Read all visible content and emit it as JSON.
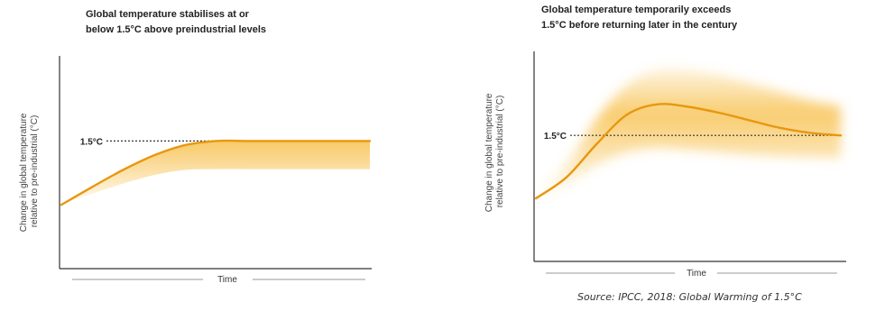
{
  "chart_data": [
    {
      "type": "area",
      "title": "Global temperature stabilises at or below 1.5°C above preindustrial levels",
      "title_lines": [
        "Global temperature stabilises at or",
        "below 1.5°C above preindustrial levels"
      ],
      "xlabel": "Time",
      "ylabel": "Change in global temperature relative to pre-industrial (°C)",
      "ylabel_lines": [
        "Change in global temperature",
        "relative to pre-industrial (°C)"
      ],
      "reference_label": "1.5°C",
      "reference_value": 1.5,
      "xlim": [
        0,
        1
      ],
      "ylim": [
        0,
        2.5
      ],
      "grid": false,
      "series": [
        {
          "x": [
            0,
            0.1,
            0.2,
            0.3,
            0.4,
            0.5,
            0.6,
            0.7,
            0.8,
            0.9,
            1.0
          ],
          "y": [
            0.75,
            0.96,
            1.16,
            1.33,
            1.45,
            1.5,
            1.5,
            1.5,
            1.5,
            1.5,
            1.5
          ],
          "band_low": [
            0.75,
            0.88,
            1.0,
            1.1,
            1.16,
            1.17,
            1.17,
            1.17,
            1.17,
            1.17,
            1.17
          ]
        }
      ],
      "colors": {
        "line": "#E8970F",
        "band": "#F6B733"
      }
    },
    {
      "type": "area",
      "title": "Global temperature temporarily exceeds 1.5°C before returning later in the century",
      "title_lines": [
        "Global temperature temporarily exceeds",
        "1.5°C before returning later in the century"
      ],
      "xlabel": "Time",
      "ylabel": "Change in global temperature relative to pre-industrial (°C)",
      "ylabel_lines": [
        "Change in global temperature",
        "relative to pre-industrial (°C)"
      ],
      "reference_label": "1.5°C",
      "reference_value": 1.5,
      "xlim": [
        0,
        1
      ],
      "ylim": [
        0,
        2.5
      ],
      "grid": false,
      "series": [
        {
          "x": [
            0,
            0.1,
            0.2,
            0.3,
            0.4,
            0.5,
            0.6,
            0.7,
            0.8,
            0.9,
            1.0
          ],
          "y": [
            0.75,
            1.0,
            1.4,
            1.75,
            1.87,
            1.84,
            1.77,
            1.68,
            1.59,
            1.53,
            1.5
          ],
          "band_low": [
            0.75,
            0.92,
            1.15,
            1.3,
            1.35,
            1.33,
            1.3,
            1.27,
            1.25,
            1.24,
            1.23
          ],
          "band_high": [
            0.75,
            1.15,
            1.7,
            2.1,
            2.28,
            2.28,
            2.22,
            2.12,
            2.02,
            1.92,
            1.85
          ]
        }
      ],
      "colors": {
        "line": "#E8970F",
        "band": "#F6B733"
      }
    }
  ],
  "source": "Source:  IPCC, 2018:  Global Warming of 1.5°C"
}
